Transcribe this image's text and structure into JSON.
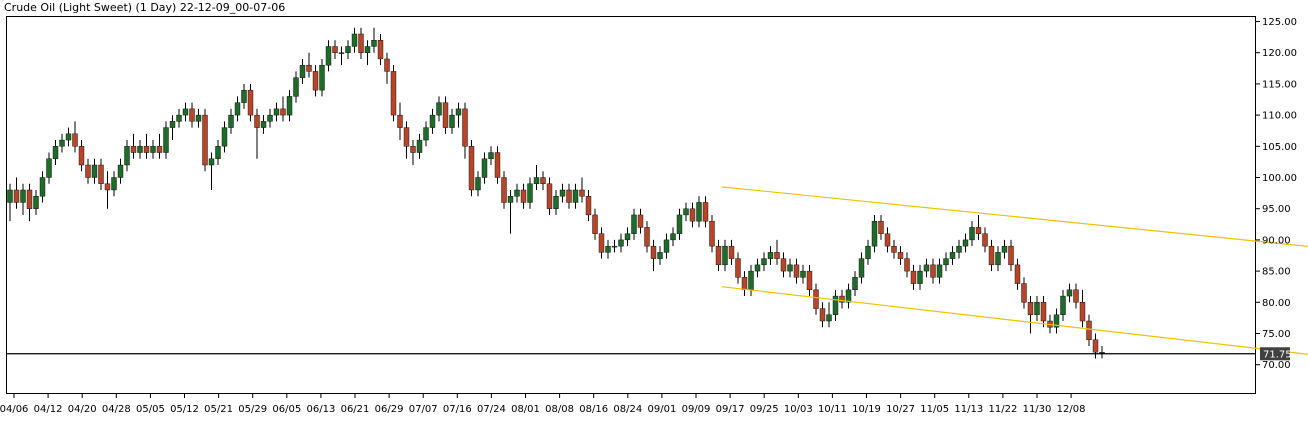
{
  "window": {
    "title": "Crude Oil (Light Sweet) (1 Day) 22-12-09_00-07-06"
  },
  "colors": {
    "background": "#ffffff",
    "up_candle": "#1f6b2a",
    "down_candle": "#b5462a",
    "wick": "#000000",
    "channel_line": "#f2c200",
    "horizontal_line": "#000000",
    "price_tag_bg": "#404040",
    "axis": "#000000"
  },
  "chart_data": {
    "type": "candlestick",
    "title": "Crude Oil (Light Sweet) (1 Day) 22-12-09_00-07-06",
    "ylim": [
      65,
      126
    ],
    "y_ticks": [
      "125.00",
      "120.00",
      "115.00",
      "110.00",
      "105.00",
      "100.00",
      "95.00",
      "90.00",
      "85.00",
      "80.00",
      "75.00",
      "70.00"
    ],
    "x_ticks": [
      "04/06",
      "04/12",
      "04/20",
      "04/28",
      "05/05",
      "05/12",
      "05/21",
      "05/29",
      "06/05",
      "06/13",
      "06/21",
      "06/29",
      "07/07",
      "07/16",
      "07/24",
      "08/01",
      "08/08",
      "08/16",
      "08/24",
      "09/01",
      "09/09",
      "09/17",
      "09/25",
      "10/03",
      "10/11",
      "10/19",
      "10/27",
      "11/05",
      "11/13",
      "11/22",
      "11/30",
      "12/08"
    ],
    "grid": false,
    "current_price_label": "71.75",
    "horizontal_line_price": 71.75,
    "candles": [
      {
        "o": 96,
        "h": 99,
        "l": 93,
        "c": 98
      },
      {
        "o": 98,
        "h": 100,
        "l": 95,
        "c": 96
      },
      {
        "o": 96,
        "h": 99,
        "l": 94,
        "c": 98
      },
      {
        "o": 98,
        "h": 99,
        "l": 93,
        "c": 95
      },
      {
        "o": 95,
        "h": 98,
        "l": 94,
        "c": 97
      },
      {
        "o": 97,
        "h": 101,
        "l": 96,
        "c": 100
      },
      {
        "o": 100,
        "h": 104,
        "l": 99,
        "c": 103
      },
      {
        "o": 103,
        "h": 106,
        "l": 102,
        "c": 105
      },
      {
        "o": 105,
        "h": 107,
        "l": 104,
        "c": 106
      },
      {
        "o": 106,
        "h": 108,
        "l": 105,
        "c": 107
      },
      {
        "o": 107,
        "h": 109,
        "l": 104,
        "c": 105
      },
      {
        "o": 105,
        "h": 106,
        "l": 101,
        "c": 102
      },
      {
        "o": 102,
        "h": 103,
        "l": 99,
        "c": 100
      },
      {
        "o": 100,
        "h": 103,
        "l": 99,
        "c": 102
      },
      {
        "o": 102,
        "h": 103,
        "l": 98,
        "c": 99
      },
      {
        "o": 99,
        "h": 101,
        "l": 95,
        "c": 98
      },
      {
        "o": 98,
        "h": 101,
        "l": 97,
        "c": 100
      },
      {
        "o": 100,
        "h": 103,
        "l": 99,
        "c": 102
      },
      {
        "o": 102,
        "h": 106,
        "l": 101,
        "c": 105
      },
      {
        "o": 105,
        "h": 107,
        "l": 103,
        "c": 104
      },
      {
        "o": 104,
        "h": 106,
        "l": 103,
        "c": 105
      },
      {
        "o": 105,
        "h": 107,
        "l": 103,
        "c": 104
      },
      {
        "o": 104,
        "h": 106,
        "l": 103,
        "c": 105
      },
      {
        "o": 105,
        "h": 107,
        "l": 103,
        "c": 104
      },
      {
        "o": 104,
        "h": 109,
        "l": 103,
        "c": 108
      },
      {
        "o": 108,
        "h": 110,
        "l": 106,
        "c": 109
      },
      {
        "o": 109,
        "h": 111,
        "l": 108,
        "c": 110
      },
      {
        "o": 110,
        "h": 112,
        "l": 109,
        "c": 111
      },
      {
        "o": 111,
        "h": 112,
        "l": 108,
        "c": 109
      },
      {
        "o": 109,
        "h": 111,
        "l": 108,
        "c": 110
      },
      {
        "o": 110,
        "h": 111,
        "l": 101,
        "c": 102
      },
      {
        "o": 102,
        "h": 104,
        "l": 98,
        "c": 103
      },
      {
        "o": 103,
        "h": 106,
        "l": 102,
        "c": 105
      },
      {
        "o": 105,
        "h": 109,
        "l": 104,
        "c": 108
      },
      {
        "o": 108,
        "h": 111,
        "l": 107,
        "c": 110
      },
      {
        "o": 110,
        "h": 113,
        "l": 109,
        "c": 112
      },
      {
        "o": 112,
        "h": 115,
        "l": 111,
        "c": 114
      },
      {
        "o": 114,
        "h": 115,
        "l": 109,
        "c": 110
      },
      {
        "o": 110,
        "h": 111,
        "l": 103,
        "c": 108
      },
      {
        "o": 108,
        "h": 110,
        "l": 107,
        "c": 109
      },
      {
        "o": 109,
        "h": 111,
        "l": 108,
        "c": 110
      },
      {
        "o": 110,
        "h": 112,
        "l": 109,
        "c": 111
      },
      {
        "o": 111,
        "h": 113,
        "l": 109,
        "c": 110
      },
      {
        "o": 110,
        "h": 114,
        "l": 109,
        "c": 113
      },
      {
        "o": 113,
        "h": 117,
        "l": 112,
        "c": 116
      },
      {
        "o": 116,
        "h": 119,
        "l": 115,
        "c": 118
      },
      {
        "o": 118,
        "h": 120,
        "l": 116,
        "c": 117
      },
      {
        "o": 117,
        "h": 118,
        "l": 113,
        "c": 114
      },
      {
        "o": 114,
        "h": 119,
        "l": 113,
        "c": 118
      },
      {
        "o": 118,
        "h": 122,
        "l": 117,
        "c": 121
      },
      {
        "o": 121,
        "h": 122,
        "l": 119,
        "c": 120
      },
      {
        "o": 120,
        "h": 121,
        "l": 118,
        "c": 120
      },
      {
        "o": 120,
        "h": 122,
        "l": 119,
        "c": 121
      },
      {
        "o": 121,
        "h": 124,
        "l": 120,
        "c": 123
      },
      {
        "o": 123,
        "h": 124,
        "l": 119,
        "c": 120
      },
      {
        "o": 120,
        "h": 122,
        "l": 118,
        "c": 121
      },
      {
        "o": 121,
        "h": 124,
        "l": 120,
        "c": 122
      },
      {
        "o": 122,
        "h": 123,
        "l": 118,
        "c": 119
      },
      {
        "o": 119,
        "h": 120,
        "l": 115,
        "c": 117
      },
      {
        "o": 117,
        "h": 118,
        "l": 109,
        "c": 110
      },
      {
        "o": 110,
        "h": 112,
        "l": 106,
        "c": 108
      },
      {
        "o": 108,
        "h": 109,
        "l": 103,
        "c": 105
      },
      {
        "o": 105,
        "h": 106,
        "l": 102,
        "c": 104
      },
      {
        "o": 104,
        "h": 107,
        "l": 103,
        "c": 106
      },
      {
        "o": 106,
        "h": 109,
        "l": 105,
        "c": 108
      },
      {
        "o": 108,
        "h": 111,
        "l": 107,
        "c": 110
      },
      {
        "o": 110,
        "h": 113,
        "l": 109,
        "c": 112
      },
      {
        "o": 112,
        "h": 113,
        "l": 107,
        "c": 108
      },
      {
        "o": 108,
        "h": 111,
        "l": 107,
        "c": 110
      },
      {
        "o": 110,
        "h": 112,
        "l": 108,
        "c": 111
      },
      {
        "o": 111,
        "h": 112,
        "l": 103,
        "c": 105
      },
      {
        "o": 105,
        "h": 106,
        "l": 97,
        "c": 98
      },
      {
        "o": 98,
        "h": 101,
        "l": 97,
        "c": 100
      },
      {
        "o": 100,
        "h": 104,
        "l": 99,
        "c": 103
      },
      {
        "o": 103,
        "h": 105,
        "l": 102,
        "c": 104
      },
      {
        "o": 104,
        "h": 105,
        "l": 99,
        "c": 100
      },
      {
        "o": 100,
        "h": 101,
        "l": 95,
        "c": 96
      },
      {
        "o": 96,
        "h": 98,
        "l": 91,
        "c": 97
      },
      {
        "o": 97,
        "h": 99,
        "l": 96,
        "c": 98
      },
      {
        "o": 98,
        "h": 99,
        "l": 95,
        "c": 96
      },
      {
        "o": 96,
        "h": 100,
        "l": 95,
        "c": 99
      },
      {
        "o": 99,
        "h": 102,
        "l": 98,
        "c": 100
      },
      {
        "o": 100,
        "h": 101,
        "l": 98,
        "c": 99
      },
      {
        "o": 99,
        "h": 100,
        "l": 94,
        "c": 95
      },
      {
        "o": 95,
        "h": 98,
        "l": 94,
        "c": 97
      },
      {
        "o": 97,
        "h": 99,
        "l": 96,
        "c": 98
      },
      {
        "o": 98,
        "h": 99,
        "l": 95,
        "c": 96
      },
      {
        "o": 96,
        "h": 99,
        "l": 95,
        "c": 98
      },
      {
        "o": 98,
        "h": 100,
        "l": 96,
        "c": 97
      },
      {
        "o": 97,
        "h": 98,
        "l": 93,
        "c": 94
      },
      {
        "o": 94,
        "h": 95,
        "l": 90,
        "c": 91
      },
      {
        "o": 91,
        "h": 92,
        "l": 87,
        "c": 88
      },
      {
        "o": 88,
        "h": 90,
        "l": 87,
        "c": 89
      },
      {
        "o": 89,
        "h": 90,
        "l": 88,
        "c": 89
      },
      {
        "o": 89,
        "h": 91,
        "l": 88,
        "c": 90
      },
      {
        "o": 90,
        "h": 92,
        "l": 89,
        "c": 91
      },
      {
        "o": 91,
        "h": 95,
        "l": 90,
        "c": 94
      },
      {
        "o": 94,
        "h": 95,
        "l": 91,
        "c": 92
      },
      {
        "o": 92,
        "h": 93,
        "l": 88,
        "c": 89
      },
      {
        "o": 89,
        "h": 90,
        "l": 85,
        "c": 87
      },
      {
        "o": 87,
        "h": 89,
        "l": 86,
        "c": 88
      },
      {
        "o": 88,
        "h": 91,
        "l": 87,
        "c": 90
      },
      {
        "o": 90,
        "h": 92,
        "l": 89,
        "c": 91
      },
      {
        "o": 91,
        "h": 95,
        "l": 90,
        "c": 94
      },
      {
        "o": 94,
        "h": 96,
        "l": 93,
        "c": 95
      },
      {
        "o": 95,
        "h": 96,
        "l": 92,
        "c": 93
      },
      {
        "o": 93,
        "h": 97,
        "l": 92,
        "c": 96
      },
      {
        "o": 96,
        "h": 97,
        "l": 92,
        "c": 93
      },
      {
        "o": 93,
        "h": 94,
        "l": 88,
        "c": 89
      },
      {
        "o": 89,
        "h": 90,
        "l": 85,
        "c": 86
      },
      {
        "o": 86,
        "h": 90,
        "l": 85,
        "c": 89
      },
      {
        "o": 89,
        "h": 90,
        "l": 86,
        "c": 87
      },
      {
        "o": 87,
        "h": 88,
        "l": 83,
        "c": 84
      },
      {
        "o": 84,
        "h": 85,
        "l": 81,
        "c": 82
      },
      {
        "o": 82,
        "h": 86,
        "l": 81,
        "c": 85
      },
      {
        "o": 85,
        "h": 87,
        "l": 84,
        "c": 86
      },
      {
        "o": 86,
        "h": 88,
        "l": 85,
        "c": 87
      },
      {
        "o": 87,
        "h": 89,
        "l": 86,
        "c": 88
      },
      {
        "o": 88,
        "h": 90,
        "l": 86,
        "c": 87
      },
      {
        "o": 87,
        "h": 88,
        "l": 84,
        "c": 85
      },
      {
        "o": 85,
        "h": 87,
        "l": 84,
        "c": 86
      },
      {
        "o": 86,
        "h": 87,
        "l": 83,
        "c": 84
      },
      {
        "o": 84,
        "h": 86,
        "l": 83,
        "c": 85
      },
      {
        "o": 85,
        "h": 86,
        "l": 81,
        "c": 82
      },
      {
        "o": 82,
        "h": 83,
        "l": 78,
        "c": 79
      },
      {
        "o": 79,
        "h": 80,
        "l": 76,
        "c": 77
      },
      {
        "o": 77,
        "h": 80,
        "l": 76,
        "c": 78
      },
      {
        "o": 78,
        "h": 82,
        "l": 77,
        "c": 81
      },
      {
        "o": 81,
        "h": 82,
        "l": 79,
        "c": 80
      },
      {
        "o": 80,
        "h": 83,
        "l": 79,
        "c": 82
      },
      {
        "o": 82,
        "h": 85,
        "l": 81,
        "c": 84
      },
      {
        "o": 84,
        "h": 88,
        "l": 83,
        "c": 87
      },
      {
        "o": 87,
        "h": 90,
        "l": 86,
        "c": 89
      },
      {
        "o": 89,
        "h": 94,
        "l": 88,
        "c": 93
      },
      {
        "o": 93,
        "h": 94,
        "l": 90,
        "c": 91
      },
      {
        "o": 91,
        "h": 92,
        "l": 88,
        "c": 89
      },
      {
        "o": 89,
        "h": 90,
        "l": 87,
        "c": 88
      },
      {
        "o": 88,
        "h": 89,
        "l": 86,
        "c": 87
      },
      {
        "o": 87,
        "h": 88,
        "l": 84,
        "c": 85
      },
      {
        "o": 85,
        "h": 86,
        "l": 82,
        "c": 83
      },
      {
        "o": 83,
        "h": 86,
        "l": 82,
        "c": 85
      },
      {
        "o": 85,
        "h": 87,
        "l": 84,
        "c": 86
      },
      {
        "o": 86,
        "h": 87,
        "l": 83,
        "c": 84
      },
      {
        "o": 84,
        "h": 87,
        "l": 83,
        "c": 86
      },
      {
        "o": 86,
        "h": 88,
        "l": 85,
        "c": 87
      },
      {
        "o": 87,
        "h": 89,
        "l": 86,
        "c": 88
      },
      {
        "o": 88,
        "h": 90,
        "l": 87,
        "c": 89
      },
      {
        "o": 89,
        "h": 91,
        "l": 88,
        "c": 90
      },
      {
        "o": 90,
        "h": 93,
        "l": 89,
        "c": 92
      },
      {
        "o": 92,
        "h": 94,
        "l": 90,
        "c": 91
      },
      {
        "o": 91,
        "h": 92,
        "l": 88,
        "c": 89
      },
      {
        "o": 89,
        "h": 90,
        "l": 85,
        "c": 86
      },
      {
        "o": 86,
        "h": 89,
        "l": 85,
        "c": 88
      },
      {
        "o": 88,
        "h": 90,
        "l": 87,
        "c": 89
      },
      {
        "o": 89,
        "h": 90,
        "l": 85,
        "c": 86
      },
      {
        "o": 86,
        "h": 87,
        "l": 82,
        "c": 83
      },
      {
        "o": 83,
        "h": 84,
        "l": 79,
        "c": 80
      },
      {
        "o": 80,
        "h": 81,
        "l": 75,
        "c": 78
      },
      {
        "o": 78,
        "h": 81,
        "l": 77,
        "c": 80
      },
      {
        "o": 80,
        "h": 81,
        "l": 76,
        "c": 77
      },
      {
        "o": 77,
        "h": 78,
        "l": 75,
        "c": 76
      },
      {
        "o": 76,
        "h": 79,
        "l": 75,
        "c": 78
      },
      {
        "o": 78,
        "h": 82,
        "l": 77,
        "c": 81
      },
      {
        "o": 81,
        "h": 83,
        "l": 80,
        "c": 82
      },
      {
        "o": 82,
        "h": 83,
        "l": 79,
        "c": 80
      },
      {
        "o": 80,
        "h": 82,
        "l": 76,
        "c": 77
      },
      {
        "o": 77,
        "h": 78,
        "l": 73,
        "c": 74
      },
      {
        "o": 74,
        "h": 75,
        "l": 71,
        "c": 72
      },
      {
        "o": 72,
        "h": 73,
        "l": 71,
        "c": 72
      }
    ],
    "trendlines": [
      {
        "name": "upper-channel",
        "x1": 109.5,
        "y1": 98.5,
        "x2": 223,
        "y2": 86.5
      },
      {
        "name": "lower-channel",
        "x1": 109.5,
        "y1": 82.5,
        "x2": 222,
        "y2": 69
      }
    ]
  }
}
